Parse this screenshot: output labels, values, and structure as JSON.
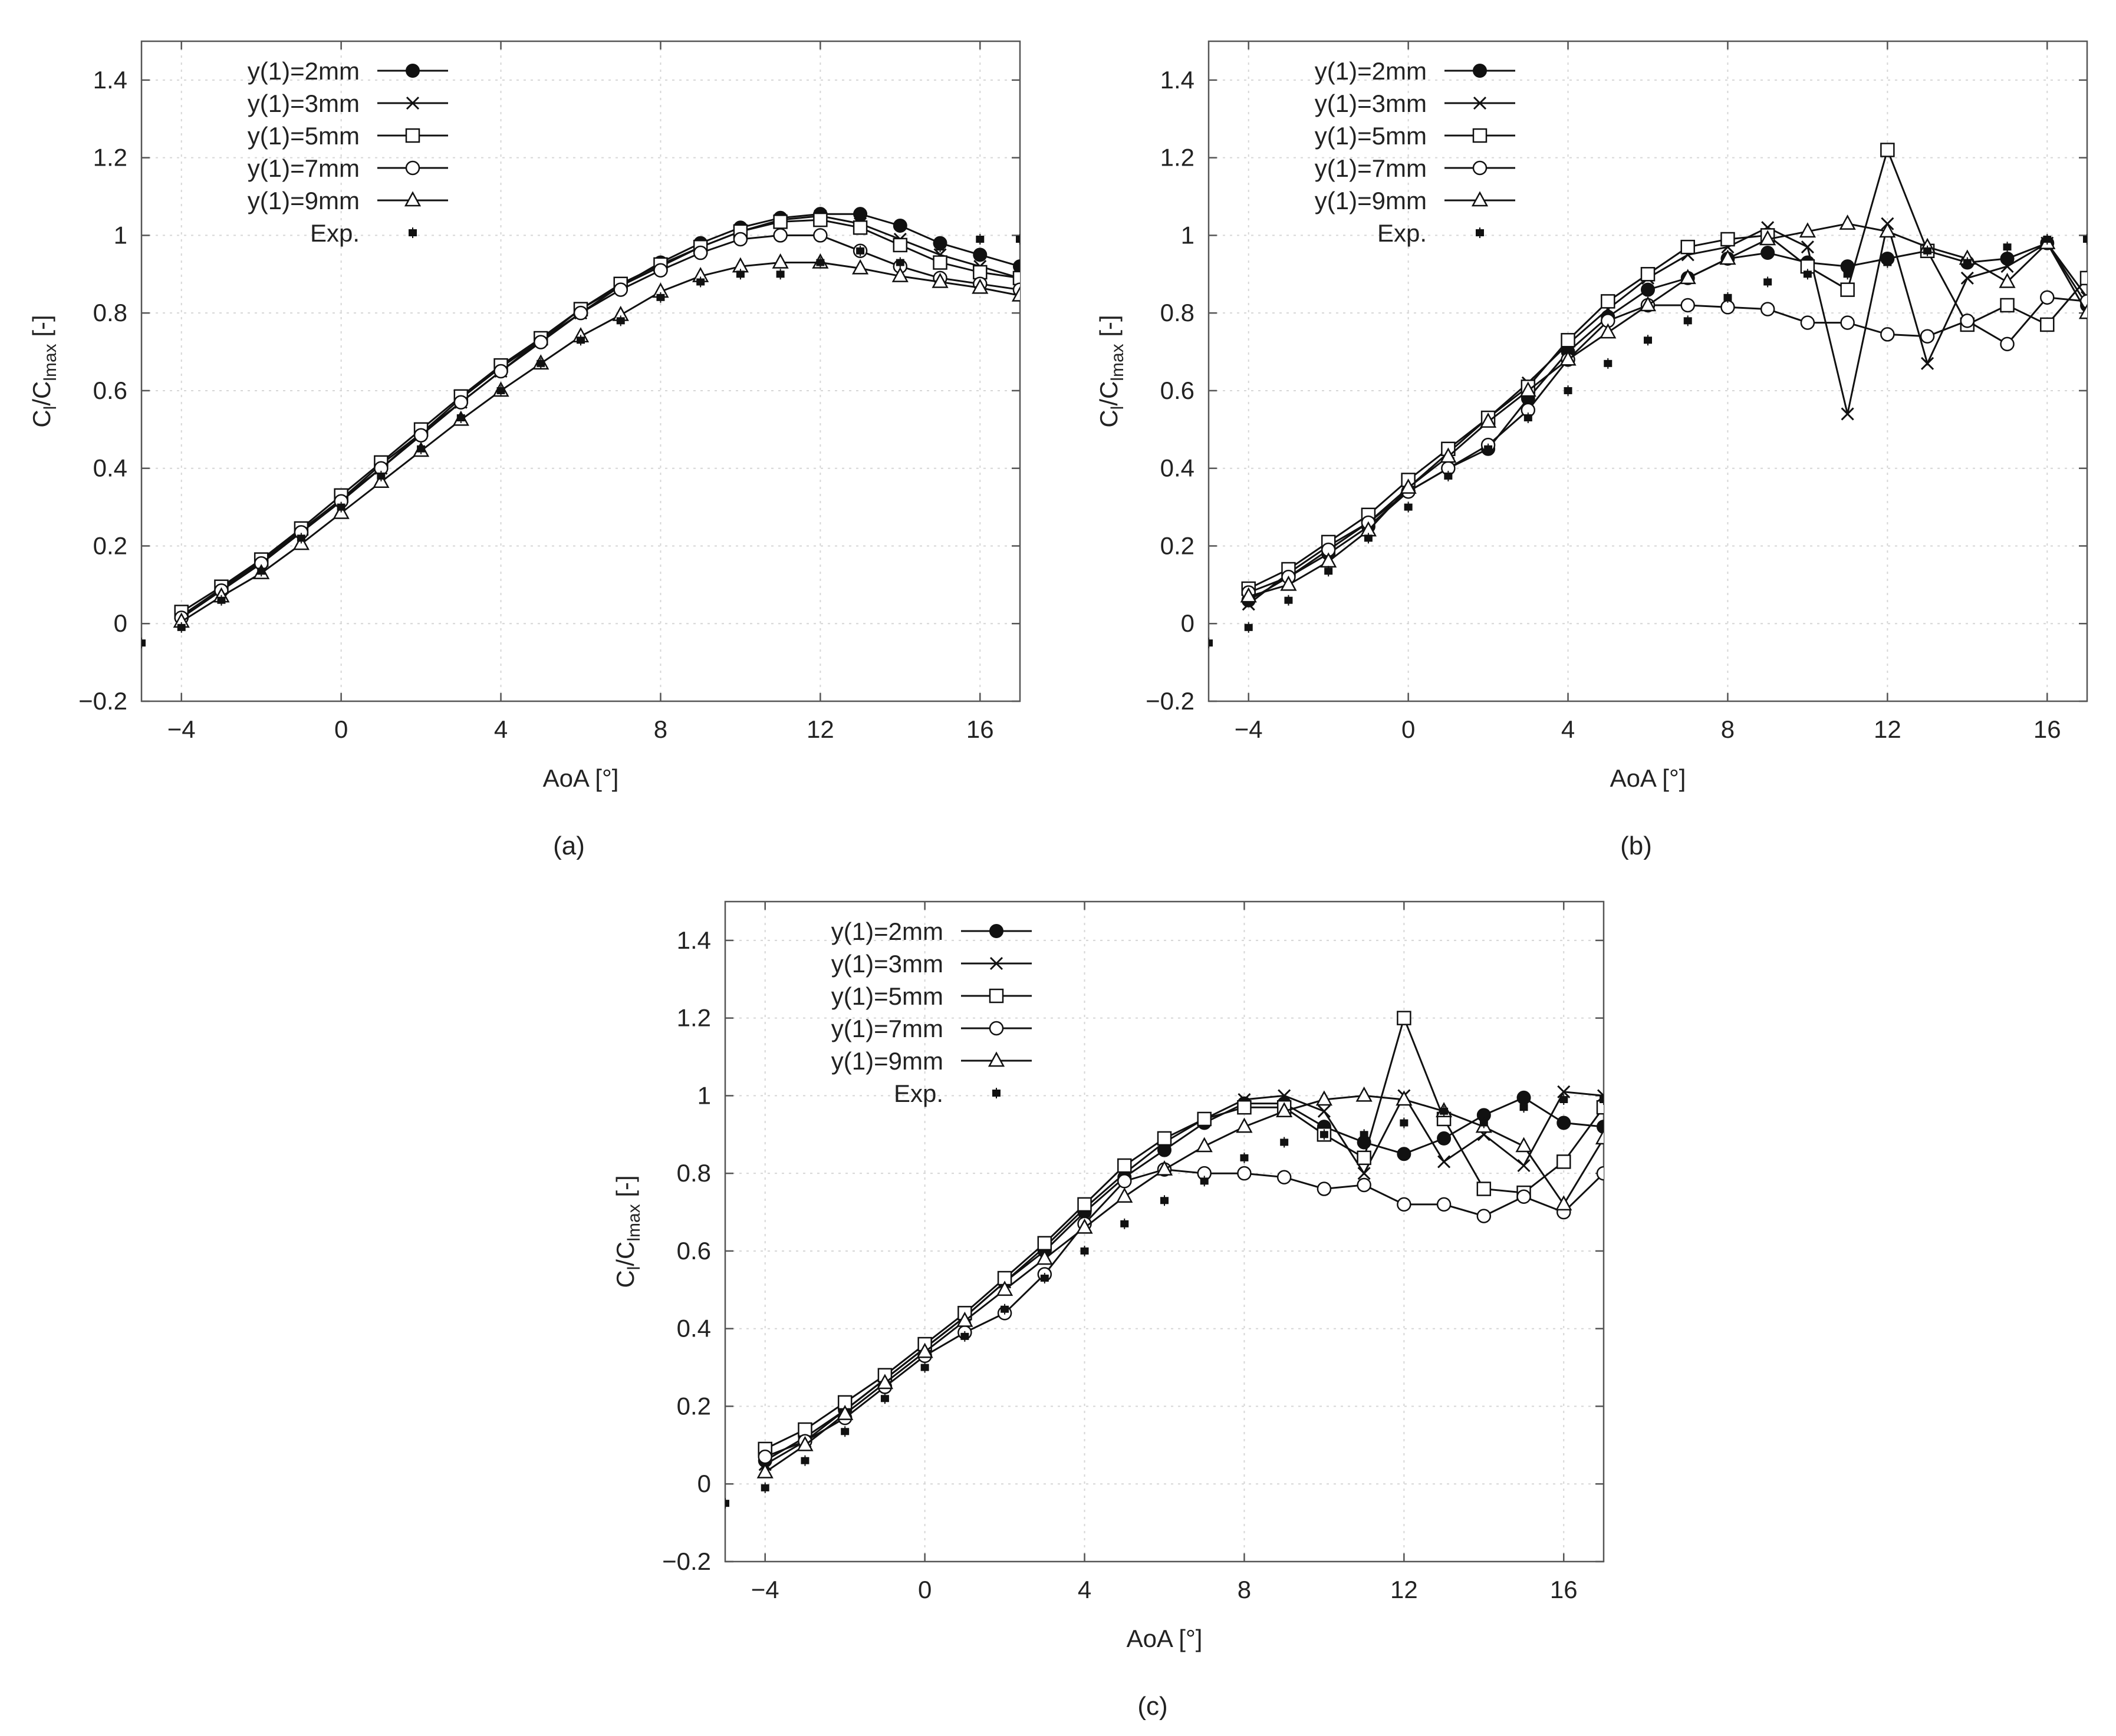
{
  "chart_data": [
    {
      "type": "line",
      "panel": "a",
      "caption": "(a)",
      "xlabel": "AoA [°]",
      "ylabel": "Cl/Clmax [-]",
      "xlim": [
        -5,
        17
      ],
      "ylim": [
        -0.2,
        1.5
      ],
      "xticks": [
        -4,
        0,
        4,
        8,
        12,
        16
      ],
      "yticks": [
        -0.2,
        0,
        0.2,
        0.4,
        0.6,
        0.8,
        1,
        1.2,
        1.4
      ],
      "ytick_labels": [
        "−0.2",
        "0",
        "0.2",
        "0.4",
        "0.6",
        "0.8",
        "1",
        "1.2",
        "1.4"
      ],
      "xtick_labels": [
        "−4",
        "0",
        "4",
        "8",
        "12",
        "16"
      ],
      "legend_position": "top-left",
      "series": [
        {
          "name": "y(1)=2mm",
          "marker": "filled-circle",
          "x": [
            -4,
            -3,
            -2,
            -1,
            0,
            1,
            2,
            3,
            4,
            5,
            6,
            7,
            8,
            9,
            10,
            11,
            12,
            13,
            14,
            15,
            16,
            17
          ],
          "y": [
            0.02,
            0.09,
            0.16,
            0.24,
            0.32,
            0.41,
            0.49,
            0.58,
            0.66,
            0.73,
            0.81,
            0.87,
            0.93,
            0.98,
            1.02,
            1.045,
            1.055,
            1.055,
            1.025,
            0.98,
            0.95,
            0.92
          ]
        },
        {
          "name": "y(1)=3mm",
          "marker": "cross",
          "x": [
            -4,
            -3,
            -2,
            -1,
            0,
            1,
            2,
            3,
            4,
            5,
            6,
            7,
            8,
            9,
            10,
            11,
            12,
            13,
            14,
            15,
            16,
            17
          ],
          "y": [
            0.02,
            0.09,
            0.16,
            0.24,
            0.32,
            0.4,
            0.49,
            0.57,
            0.65,
            0.73,
            0.8,
            0.87,
            0.92,
            0.97,
            1.01,
            1.04,
            1.05,
            1.03,
            0.99,
            0.95,
            0.92,
            0.89
          ]
        },
        {
          "name": "y(1)=5mm",
          "marker": "open-square",
          "x": [
            -4,
            -3,
            -2,
            -1,
            0,
            1,
            2,
            3,
            4,
            5,
            6,
            7,
            8,
            9,
            10,
            11,
            12,
            13,
            14,
            15,
            16,
            17
          ],
          "y": [
            0.03,
            0.095,
            0.165,
            0.245,
            0.33,
            0.415,
            0.5,
            0.585,
            0.665,
            0.735,
            0.81,
            0.875,
            0.925,
            0.97,
            1.01,
            1.035,
            1.04,
            1.02,
            0.975,
            0.93,
            0.905,
            0.89
          ]
        },
        {
          "name": "y(1)=7mm",
          "marker": "open-circle",
          "x": [
            -4,
            -3,
            -2,
            -1,
            0,
            1,
            2,
            3,
            4,
            5,
            6,
            7,
            8,
            9,
            10,
            11,
            12,
            13,
            14,
            15,
            16,
            17
          ],
          "y": [
            0.015,
            0.085,
            0.155,
            0.235,
            0.315,
            0.4,
            0.485,
            0.57,
            0.65,
            0.725,
            0.8,
            0.86,
            0.91,
            0.955,
            0.99,
            1.0,
            1.0,
            0.96,
            0.92,
            0.89,
            0.875,
            0.86
          ]
        },
        {
          "name": "y(1)=9mm",
          "marker": "open-triangle",
          "x": [
            -4,
            -3,
            -2,
            -1,
            0,
            1,
            2,
            3,
            4,
            5,
            6,
            7,
            8,
            9,
            10,
            11,
            12,
            13,
            14,
            15,
            16,
            17
          ],
          "y": [
            0.005,
            0.07,
            0.13,
            0.205,
            0.285,
            0.365,
            0.445,
            0.525,
            0.6,
            0.67,
            0.74,
            0.795,
            0.855,
            0.895,
            0.92,
            0.93,
            0.93,
            0.915,
            0.895,
            0.88,
            0.865,
            0.845
          ]
        },
        {
          "name": "Exp.",
          "marker": "exp",
          "x": [
            -5,
            -4,
            -3,
            -2,
            -1,
            0,
            1,
            2,
            3,
            4,
            5,
            6,
            7,
            8,
            9,
            10,
            11,
            12,
            13,
            14,
            15,
            16,
            17
          ],
          "y": [
            -0.05,
            -0.01,
            0.06,
            0.135,
            0.22,
            0.3,
            0.38,
            0.45,
            0.53,
            0.6,
            0.67,
            0.73,
            0.78,
            0.84,
            0.88,
            0.9,
            0.9,
            0.93,
            0.96,
            0.93,
            0.97,
            0.99,
            0.99
          ]
        }
      ]
    },
    {
      "type": "line",
      "panel": "b",
      "caption": "(b)",
      "xlabel": "AoA [°]",
      "ylabel": "Cl/Clmax [-]",
      "xlim": [
        -5,
        17
      ],
      "ylim": [
        -0.2,
        1.5
      ],
      "xticks": [
        -4,
        0,
        4,
        8,
        12,
        16
      ],
      "yticks": [
        -0.2,
        0,
        0.2,
        0.4,
        0.6,
        0.8,
        1,
        1.2,
        1.4
      ],
      "ytick_labels": [
        "−0.2",
        "0",
        "0.2",
        "0.4",
        "0.6",
        "0.8",
        "1",
        "1.2",
        "1.4"
      ],
      "xtick_labels": [
        "−4",
        "0",
        "4",
        "8",
        "12",
        "16"
      ],
      "legend_position": "top-left",
      "series": [
        {
          "name": "y(1)=2mm",
          "marker": "filled-circle",
          "x": [
            -4,
            -3,
            -2,
            -1,
            0,
            1,
            2,
            3,
            4,
            5,
            6,
            7,
            8,
            9,
            10,
            11,
            12,
            13,
            14,
            15,
            16,
            17
          ],
          "y": [
            0.06,
            0.12,
            0.18,
            0.25,
            0.34,
            0.4,
            0.45,
            0.58,
            0.7,
            0.79,
            0.86,
            0.89,
            0.94,
            0.955,
            0.93,
            0.92,
            0.94,
            0.96,
            0.93,
            0.94,
            0.98,
            0.82
          ]
        },
        {
          "name": "y(1)=3mm",
          "marker": "cross",
          "x": [
            -4,
            -3,
            -2,
            -1,
            0,
            1,
            2,
            3,
            4,
            5,
            6,
            7,
            8,
            9,
            10,
            11,
            12,
            13,
            14,
            15,
            16,
            17
          ],
          "y": [
            0.05,
            0.13,
            0.2,
            0.26,
            0.35,
            0.44,
            0.53,
            0.62,
            0.72,
            0.81,
            0.89,
            0.95,
            0.97,
            1.02,
            0.97,
            0.54,
            1.03,
            0.67,
            0.89,
            0.92,
            0.98,
            0.84
          ]
        },
        {
          "name": "y(1)=5mm",
          "marker": "open-square",
          "x": [
            -4,
            -3,
            -2,
            -1,
            0,
            1,
            2,
            3,
            4,
            5,
            6,
            7,
            8,
            9,
            10,
            11,
            12,
            13,
            14,
            15,
            16,
            17
          ],
          "y": [
            0.09,
            0.14,
            0.21,
            0.28,
            0.37,
            0.45,
            0.53,
            0.61,
            0.73,
            0.83,
            0.9,
            0.97,
            0.99,
            1.0,
            0.92,
            0.86,
            1.22,
            0.96,
            0.77,
            0.82,
            0.77,
            0.89
          ]
        },
        {
          "name": "y(1)=7mm",
          "marker": "open-circle",
          "x": [
            -4,
            -3,
            -2,
            -1,
            0,
            1,
            2,
            3,
            4,
            5,
            6,
            7,
            8,
            9,
            10,
            11,
            12,
            13,
            14,
            15,
            16,
            17
          ],
          "y": [
            0.08,
            0.12,
            0.19,
            0.26,
            0.34,
            0.4,
            0.46,
            0.55,
            0.68,
            0.78,
            0.82,
            0.82,
            0.815,
            0.81,
            0.775,
            0.775,
            0.745,
            0.74,
            0.78,
            0.72,
            0.84,
            0.83
          ]
        },
        {
          "name": "y(1)=9mm",
          "marker": "open-triangle",
          "x": [
            -4,
            -3,
            -2,
            -1,
            0,
            1,
            2,
            3,
            4,
            5,
            6,
            7,
            8,
            9,
            10,
            11,
            12,
            13,
            14,
            15,
            16,
            17
          ],
          "y": [
            0.07,
            0.1,
            0.16,
            0.24,
            0.35,
            0.43,
            0.52,
            0.6,
            0.68,
            0.75,
            0.82,
            0.89,
            0.94,
            0.99,
            1.01,
            1.03,
            1.01,
            0.97,
            0.94,
            0.88,
            0.98,
            0.8
          ]
        },
        {
          "name": "Exp.",
          "marker": "exp",
          "x": [
            -5,
            -4,
            -3,
            -2,
            -1,
            0,
            1,
            2,
            3,
            4,
            5,
            6,
            7,
            8,
            9,
            10,
            11,
            12,
            13,
            14,
            15,
            16,
            17
          ],
          "y": [
            -0.05,
            -0.01,
            0.06,
            0.135,
            0.22,
            0.3,
            0.38,
            0.45,
            0.53,
            0.6,
            0.67,
            0.73,
            0.78,
            0.84,
            0.88,
            0.9,
            0.9,
            0.93,
            0.96,
            0.93,
            0.97,
            0.99,
            0.99
          ]
        }
      ]
    },
    {
      "type": "line",
      "panel": "c",
      "caption": "(c)",
      "xlabel": "AoA [°]",
      "ylabel": "Cl/Clmax [-]",
      "xlim": [
        -5,
        17
      ],
      "ylim": [
        -0.2,
        1.5
      ],
      "xticks": [
        -4,
        0,
        4,
        8,
        12,
        16
      ],
      "yticks": [
        -0.2,
        0,
        0.2,
        0.4,
        0.6,
        0.8,
        1,
        1.2,
        1.4
      ],
      "ytick_labels": [
        "−0.2",
        "0",
        "0.2",
        "0.4",
        "0.6",
        "0.8",
        "1",
        "1.2",
        "1.4"
      ],
      "xtick_labels": [
        "−4",
        "0",
        "4",
        "8",
        "12",
        "16"
      ],
      "legend_position": "top-left",
      "series": [
        {
          "name": "y(1)=2mm",
          "marker": "filled-circle",
          "x": [
            -4,
            -3,
            -2,
            -1,
            0,
            1,
            2,
            3,
            4,
            5,
            6,
            7,
            8,
            9,
            10,
            11,
            12,
            13,
            14,
            15,
            16,
            17
          ],
          "y": [
            0.06,
            0.12,
            0.19,
            0.27,
            0.35,
            0.43,
            0.52,
            0.6,
            0.7,
            0.79,
            0.86,
            0.93,
            0.98,
            0.98,
            0.92,
            0.88,
            0.85,
            0.89,
            0.95,
            0.995,
            0.93,
            0.92
          ]
        },
        {
          "name": "y(1)=3mm",
          "marker": "cross",
          "x": [
            -4,
            -3,
            -2,
            -1,
            0,
            1,
            2,
            3,
            4,
            5,
            6,
            7,
            8,
            9,
            10,
            11,
            12,
            13,
            14,
            15,
            16,
            17
          ],
          "y": [
            0.05,
            0.11,
            0.19,
            0.27,
            0.35,
            0.43,
            0.52,
            0.61,
            0.71,
            0.8,
            0.88,
            0.94,
            0.99,
            1.0,
            0.96,
            0.8,
            1.0,
            0.83,
            0.9,
            0.82,
            1.01,
            1.0
          ]
        },
        {
          "name": "y(1)=5mm",
          "marker": "open-square",
          "x": [
            -4,
            -3,
            -2,
            -1,
            0,
            1,
            2,
            3,
            4,
            5,
            6,
            7,
            8,
            9,
            10,
            11,
            12,
            13,
            14,
            15,
            16,
            17
          ],
          "y": [
            0.09,
            0.14,
            0.21,
            0.28,
            0.36,
            0.44,
            0.53,
            0.62,
            0.72,
            0.82,
            0.89,
            0.94,
            0.97,
            0.97,
            0.9,
            0.84,
            1.2,
            0.94,
            0.76,
            0.75,
            0.83,
            0.97
          ]
        },
        {
          "name": "y(1)=7mm",
          "marker": "open-circle",
          "x": [
            -4,
            -3,
            -2,
            -1,
            0,
            1,
            2,
            3,
            4,
            5,
            6,
            7,
            8,
            9,
            10,
            11,
            12,
            13,
            14,
            15,
            16,
            17
          ],
          "y": [
            0.07,
            0.11,
            0.17,
            0.25,
            0.33,
            0.39,
            0.44,
            0.54,
            0.67,
            0.78,
            0.81,
            0.8,
            0.8,
            0.79,
            0.76,
            0.77,
            0.72,
            0.72,
            0.69,
            0.74,
            0.7,
            0.8
          ]
        },
        {
          "name": "y(1)=9mm",
          "marker": "open-triangle",
          "x": [
            -4,
            -3,
            -2,
            -1,
            0,
            1,
            2,
            3,
            4,
            5,
            6,
            7,
            8,
            9,
            10,
            11,
            12,
            13,
            14,
            15,
            16,
            17
          ],
          "y": [
            0.03,
            0.1,
            0.18,
            0.26,
            0.34,
            0.42,
            0.5,
            0.58,
            0.66,
            0.74,
            0.81,
            0.87,
            0.92,
            0.96,
            0.99,
            1.0,
            0.99,
            0.96,
            0.92,
            0.87,
            0.72,
            0.89
          ]
        },
        {
          "name": "Exp.",
          "marker": "exp",
          "x": [
            -5,
            -4,
            -3,
            -2,
            -1,
            0,
            1,
            2,
            3,
            4,
            5,
            6,
            7,
            8,
            9,
            10,
            11,
            12,
            13,
            14,
            15,
            16,
            17
          ],
          "y": [
            -0.05,
            -0.01,
            0.06,
            0.135,
            0.22,
            0.3,
            0.38,
            0.45,
            0.53,
            0.6,
            0.67,
            0.73,
            0.78,
            0.84,
            0.88,
            0.9,
            0.9,
            0.93,
            0.96,
            0.93,
            0.97,
            0.99,
            0.99
          ]
        }
      ]
    }
  ]
}
